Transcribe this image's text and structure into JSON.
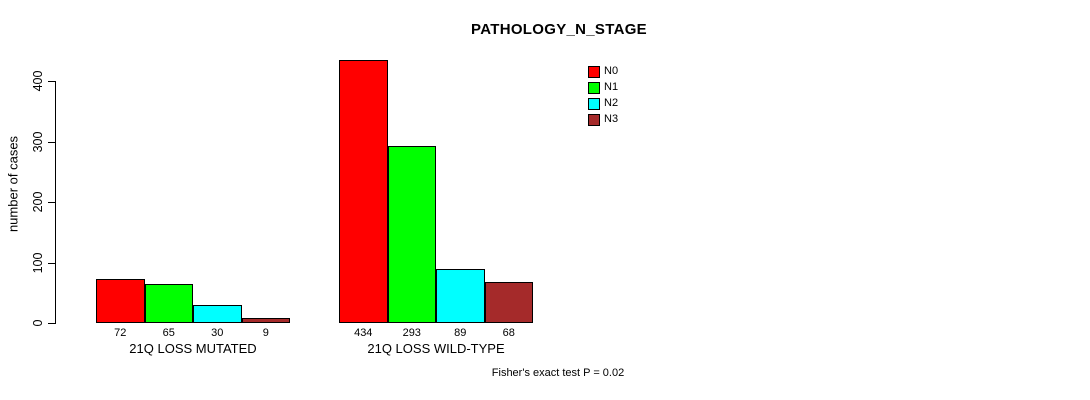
{
  "chart_data": {
    "type": "bar",
    "title": "PATHOLOGY_N_STAGE",
    "ylabel": "number of cases",
    "xlabel": "",
    "yticks": [
      0,
      100,
      200,
      300,
      400
    ],
    "ylim": [
      0,
      440
    ],
    "grid": false,
    "legend_position": "top-right-inside",
    "bar_value_labels": true,
    "categories": [
      "21Q LOSS MUTATED",
      "21Q LOSS WILD-TYPE"
    ],
    "series": [
      {
        "name": "N0",
        "color": "#FF0000",
        "values": [
          72,
          434
        ]
      },
      {
        "name": "N1",
        "color": "#00FF00",
        "values": [
          65,
          293
        ]
      },
      {
        "name": "N2",
        "color": "#00FFFF",
        "values": [
          30,
          89
        ]
      },
      {
        "name": "N3",
        "color": "#A52A2A",
        "values": [
          9,
          68
        ]
      }
    ],
    "annotation": "Fisher's exact test P = 0.02",
    "axis_color": "#000000",
    "background_color": "#FFFFFF"
  }
}
